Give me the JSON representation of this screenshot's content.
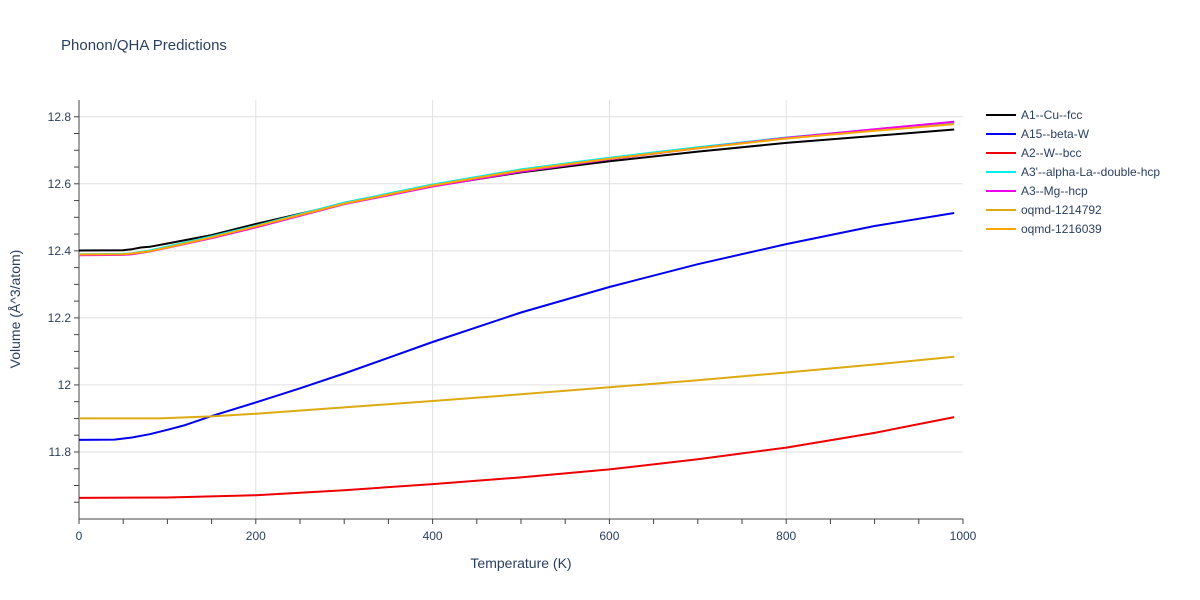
{
  "chart_data": {
    "type": "line",
    "title": "Phonon/QHA Predictions",
    "xlabel": "Temperature (K)",
    "ylabel": "Volume (Å^3/atom)",
    "xlim": [
      0,
      1000
    ],
    "ylim": [
      11.6,
      12.85
    ],
    "xticks": [
      0,
      200,
      400,
      600,
      800,
      1000
    ],
    "xtick_labels": [
      "0",
      "200",
      "400",
      "600",
      "800",
      "1000"
    ],
    "yticks": [
      11.8,
      12,
      12.2,
      12.4,
      12.6,
      12.8
    ],
    "ytick_labels": [
      "11.8",
      "12",
      "12.2",
      "12.4",
      "12.6",
      "12.8"
    ],
    "grid": true,
    "legend_position": "right",
    "series": [
      {
        "name": "A1--Cu--fcc",
        "color": "#000000",
        "x": [
          0,
          50,
          60,
          70,
          80,
          100,
          150,
          200,
          300,
          400,
          500,
          600,
          700,
          800,
          900,
          990
        ],
        "y": [
          12.401,
          12.402,
          12.405,
          12.41,
          12.412,
          12.422,
          12.447,
          12.48,
          12.541,
          12.593,
          12.634,
          12.667,
          12.696,
          12.722,
          12.743,
          12.762
        ]
      },
      {
        "name": "A15--beta-W",
        "color": "#0000ee",
        "x": [
          0,
          40,
          60,
          80,
          100,
          120,
          150,
          200,
          250,
          300,
          400,
          500,
          600,
          700,
          800,
          900,
          990
        ],
        "y": [
          11.836,
          11.837,
          11.843,
          11.853,
          11.866,
          11.88,
          11.907,
          11.948,
          11.99,
          12.034,
          12.128,
          12.216,
          12.292,
          12.36,
          12.42,
          12.474,
          12.513
        ]
      },
      {
        "name": "A2--W--bcc",
        "color": "#ee0000",
        "x": [
          0,
          100,
          200,
          300,
          400,
          500,
          600,
          700,
          800,
          900,
          990
        ],
        "y": [
          11.663,
          11.664,
          11.671,
          11.686,
          11.704,
          11.724,
          11.748,
          11.778,
          11.813,
          11.857,
          11.904
        ]
      },
      {
        "name": "A3'--alpha-La--double-hcp",
        "color": "#00eeee",
        "x": [
          0,
          50,
          60,
          80,
          100,
          150,
          200,
          300,
          400,
          500,
          600,
          700,
          800,
          900,
          990
        ],
        "y": [
          12.39,
          12.391,
          12.393,
          12.401,
          12.413,
          12.443,
          12.475,
          12.544,
          12.598,
          12.643,
          12.678,
          12.709,
          12.738,
          12.762,
          12.782
        ]
      },
      {
        "name": "A3--Mg--hcp",
        "color": "#ee00ee",
        "x": [
          0,
          50,
          60,
          80,
          100,
          150,
          200,
          300,
          400,
          500,
          600,
          700,
          800,
          900,
          990
        ],
        "y": [
          12.387,
          12.388,
          12.39,
          12.398,
          12.409,
          12.438,
          12.47,
          12.539,
          12.592,
          12.636,
          12.673,
          12.706,
          12.737,
          12.763,
          12.785
        ]
      },
      {
        "name": "oqmd-1214792",
        "color": "#ddaa11",
        "x": [
          0,
          90,
          150,
          200,
          300,
          400,
          500,
          600,
          700,
          800,
          900,
          990
        ],
        "y": [
          11.9,
          11.9,
          11.906,
          11.914,
          11.933,
          11.952,
          11.972,
          11.993,
          12.014,
          12.037,
          12.061,
          12.084
        ]
      },
      {
        "name": "oqmd-1216039",
        "color": "#ffa500",
        "x": [
          0,
          50,
          60,
          80,
          100,
          150,
          200,
          300,
          400,
          500,
          600,
          700,
          800,
          900,
          990
        ],
        "y": [
          12.389,
          12.39,
          12.392,
          12.399,
          12.41,
          12.44,
          12.473,
          12.541,
          12.595,
          12.64,
          12.675,
          12.706,
          12.735,
          12.758,
          12.778
        ]
      }
    ]
  }
}
